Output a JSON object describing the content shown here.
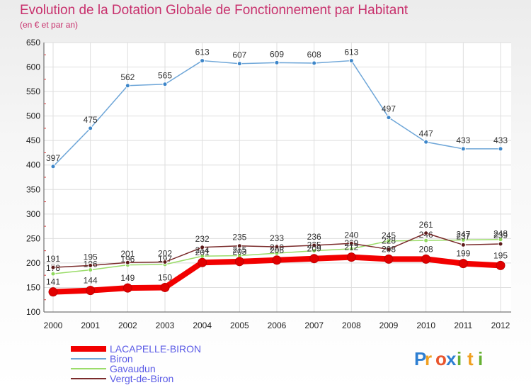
{
  "header": {
    "title": "Evolution de la Dotation Globale de Fonctionnement par Habitant",
    "subtitle": "(en € et par an)"
  },
  "brand": {
    "letters": [
      "P",
      "r",
      "o",
      "x",
      "i",
      "t",
      "i"
    ],
    "colors": [
      "#2e7fd2",
      "#f0a020",
      "#e9552d",
      "#2e7fd2",
      "#66b032",
      "#f0a020",
      "#66b032"
    ]
  },
  "chart_data": {
    "type": "line",
    "title": "Evolution de la Dotation Globale de Fonctionnement par Habitant",
    "ylabel": "(en € et par an)",
    "xlabel": "",
    "x": [
      2000,
      2001,
      2002,
      2003,
      2004,
      2005,
      2006,
      2007,
      2008,
      2009,
      2010,
      2011,
      2012
    ],
    "yticks": [
      100,
      150,
      200,
      250,
      300,
      350,
      400,
      450,
      500,
      550,
      600,
      650
    ],
    "ylim": [
      100,
      650
    ],
    "grid": true,
    "legend": "bottom-left",
    "series": [
      {
        "name": "Biron",
        "color": "#6ea6d8",
        "marker": "#3d86c9",
        "style": "thin",
        "labels": true,
        "values": [
          397,
          475,
          562,
          565,
          613,
          607,
          609,
          608,
          613,
          497,
          447,
          433,
          433
        ]
      },
      {
        "name": "Gavaudun",
        "color": "#9bdc6a",
        "marker": "#8fd85e",
        "style": "thin",
        "labels": true,
        "values": [
          178,
          186,
          196,
          197,
          214,
          215,
          220,
          225,
          229,
          245,
          246,
          247,
          248
        ]
      },
      {
        "name": "Vergt-de-Biron",
        "color": "#7a2b2b",
        "marker": "#5b1a1a",
        "style": "thin",
        "labels": true,
        "values": [
          191,
          195,
          201,
          202,
          232,
          235,
          233,
          236,
          240,
          228,
          261,
          237,
          239
        ]
      },
      {
        "name": "LACAPELLE-BIRON",
        "color": "#f20000",
        "marker": "#e10000",
        "style": "thick",
        "labels": true,
        "values": [
          141,
          144,
          149,
          150,
          201,
          203,
          206,
          209,
          212,
          208,
          208,
          199,
          195
        ]
      }
    ],
    "legend_order": [
      "LACAPELLE-BIRON",
      "Biron",
      "Gavaudun",
      "Vergt-de-Biron"
    ]
  }
}
